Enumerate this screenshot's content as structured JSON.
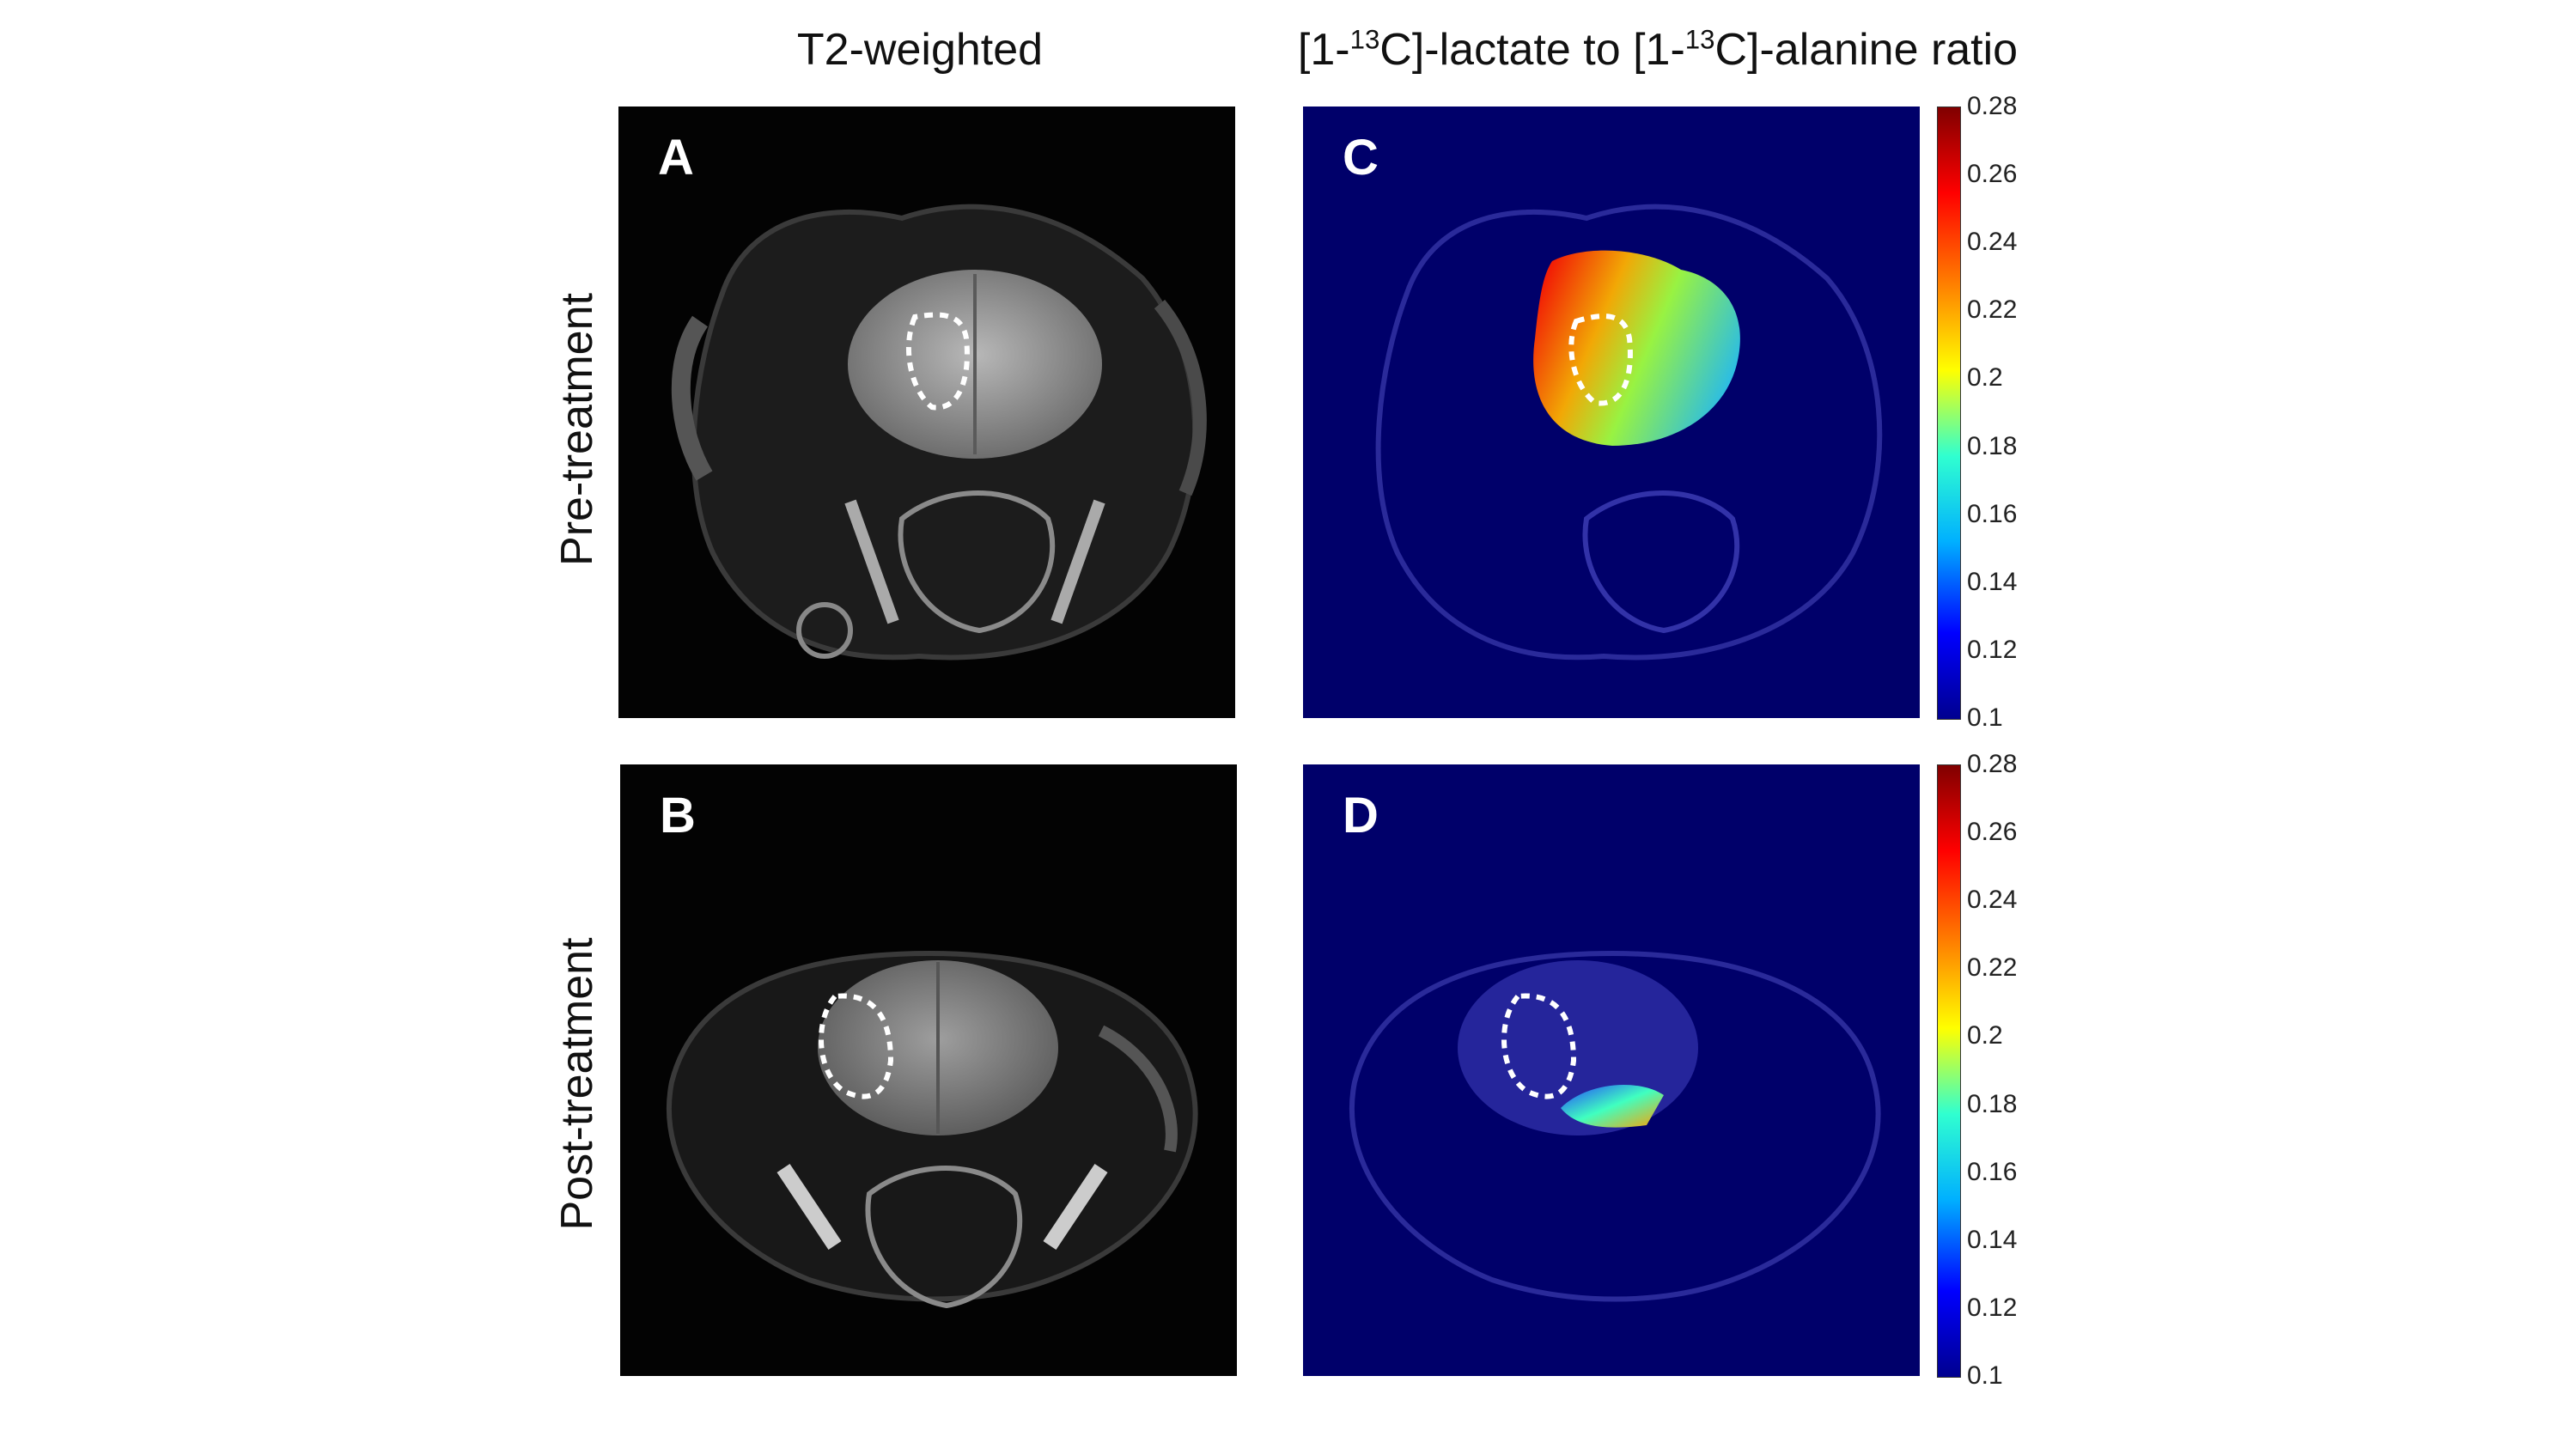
{
  "columns": {
    "left_title": "T2-weighted",
    "right_title_part1": "[1-",
    "right_title_sup1": "13",
    "right_title_part2": "C]-lactate to [1-",
    "right_title_sup2": "13",
    "right_title_part3": "C]-alanine ratio"
  },
  "rows": {
    "top_title": "Pre-treatment",
    "bottom_title": "Post-treatment"
  },
  "panels": {
    "a": "A",
    "b": "B",
    "c": "C",
    "d": "D"
  },
  "colorbar": {
    "ticks": [
      "0.28",
      "0.26",
      "0.24",
      "0.22",
      "0.2",
      "0.18",
      "0.16",
      "0.14",
      "0.12",
      "0.1"
    ],
    "colors": [
      "#00008f",
      "#0000ff",
      "#00b0ff",
      "#30ffd0",
      "#ffff00",
      "#ff8000",
      "#ff0000",
      "#800000"
    ]
  }
}
